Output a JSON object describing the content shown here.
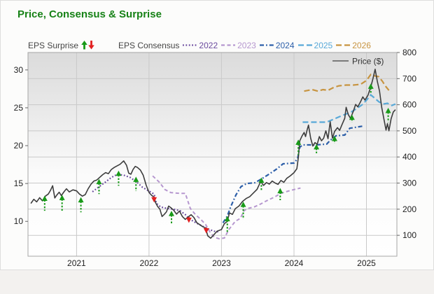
{
  "title": "Price, Consensus & Surprise",
  "title_color": "#178217",
  "legend": {
    "eps_surprise_label": "EPS Surprise",
    "eps_consensus_label": "EPS Consensus",
    "price_label": "Price ($)",
    "up_arrow_color": "#189a18",
    "down_arrow_color": "#e22020"
  },
  "axes": {
    "left_ticks": [
      30,
      25,
      20,
      15,
      10
    ],
    "right_ticks": [
      800,
      700,
      600,
      500,
      400,
      300,
      200,
      100
    ],
    "x_ticks": [
      2021,
      2022,
      2023,
      2024,
      2025
    ]
  },
  "chart_data": {
    "type": "line",
    "title": "Price, Consensus & Surprise",
    "x_range": [
      2020.33,
      2025.42
    ],
    "left_axis": {
      "label": "EPS",
      "range": [
        5.4,
        32.3
      ]
    },
    "right_axis": {
      "label": "Price ($)",
      "range": [
        20,
        800
      ]
    },
    "grid": "on",
    "price_series": {
      "name": "Price ($)",
      "color": "#3d3d3d",
      "axis": "right",
      "points": [
        [
          2020.37,
          222
        ],
        [
          2020.41,
          238
        ],
        [
          2020.45,
          228
        ],
        [
          2020.49,
          244
        ],
        [
          2020.53,
          232
        ],
        [
          2020.57,
          250
        ],
        [
          2020.61,
          258
        ],
        [
          2020.64,
          272
        ],
        [
          2020.67,
          290
        ],
        [
          2020.7,
          243
        ],
        [
          2020.73,
          255
        ],
        [
          2020.76,
          265
        ],
        [
          2020.79,
          252
        ],
        [
          2020.83,
          268
        ],
        [
          2020.86,
          278
        ],
        [
          2020.9,
          266
        ],
        [
          2020.95,
          274
        ],
        [
          2021.0,
          270
        ],
        [
          2021.04,
          258
        ],
        [
          2021.08,
          250
        ],
        [
          2021.12,
          256
        ],
        [
          2021.16,
          278
        ],
        [
          2021.2,
          296
        ],
        [
          2021.24,
          308
        ],
        [
          2021.28,
          312
        ],
        [
          2021.32,
          322
        ],
        [
          2021.36,
          332
        ],
        [
          2021.4,
          340
        ],
        [
          2021.44,
          336
        ],
        [
          2021.48,
          352
        ],
        [
          2021.52,
          360
        ],
        [
          2021.56,
          366
        ],
        [
          2021.6,
          372
        ],
        [
          2021.65,
          385
        ],
        [
          2021.69,
          368
        ],
        [
          2021.72,
          338
        ],
        [
          2021.75,
          334
        ],
        [
          2021.78,
          352
        ],
        [
          2021.81,
          364
        ],
        [
          2021.84,
          360
        ],
        [
          2021.88,
          350
        ],
        [
          2021.92,
          330
        ],
        [
          2021.96,
          292
        ],
        [
          2022.0,
          264
        ],
        [
          2022.04,
          252
        ],
        [
          2022.07,
          246
        ],
        [
          2022.09,
          225
        ],
        [
          2022.12,
          210
        ],
        [
          2022.15,
          200
        ],
        [
          2022.18,
          172
        ],
        [
          2022.21,
          180
        ],
        [
          2022.24,
          190
        ],
        [
          2022.27,
          212
        ],
        [
          2022.3,
          206
        ],
        [
          2022.34,
          196
        ],
        [
          2022.38,
          181
        ],
        [
          2022.42,
          193
        ],
        [
          2022.46,
          172
        ],
        [
          2022.5,
          161
        ],
        [
          2022.54,
          170
        ],
        [
          2022.58,
          179
        ],
        [
          2022.62,
          168
        ],
        [
          2022.66,
          148
        ],
        [
          2022.7,
          141
        ],
        [
          2022.74,
          133
        ],
        [
          2022.78,
          128
        ],
        [
          2022.81,
          98
        ],
        [
          2022.85,
          89
        ],
        [
          2022.89,
          101
        ],
        [
          2022.94,
          116
        ],
        [
          2023.0,
          122
        ],
        [
          2023.04,
          145
        ],
        [
          2023.08,
          153
        ],
        [
          2023.11,
          186
        ],
        [
          2023.15,
          180
        ],
        [
          2023.19,
          202
        ],
        [
          2023.24,
          212
        ],
        [
          2023.29,
          230
        ],
        [
          2023.34,
          241
        ],
        [
          2023.39,
          248
        ],
        [
          2023.44,
          262
        ],
        [
          2023.49,
          276
        ],
        [
          2023.54,
          306
        ],
        [
          2023.58,
          291
        ],
        [
          2023.62,
          302
        ],
        [
          2023.66,
          296
        ],
        [
          2023.7,
          308
        ],
        [
          2023.74,
          300
        ],
        [
          2023.78,
          295
        ],
        [
          2023.82,
          310
        ],
        [
          2023.86,
          303
        ],
        [
          2023.9,
          318
        ],
        [
          2023.95,
          328
        ],
        [
          2024.0,
          340
        ],
        [
          2024.04,
          355
        ],
        [
          2024.06,
          398
        ],
        [
          2024.08,
          462
        ],
        [
          2024.11,
          480
        ],
        [
          2024.14,
          494
        ],
        [
          2024.16,
          478
        ],
        [
          2024.18,
          502
        ],
        [
          2024.2,
          522
        ],
        [
          2024.23,
          472
        ],
        [
          2024.26,
          442
        ],
        [
          2024.29,
          455
        ],
        [
          2024.32,
          448
        ],
        [
          2024.35,
          478
        ],
        [
          2024.38,
          462
        ],
        [
          2024.41,
          472
        ],
        [
          2024.44,
          500
        ],
        [
          2024.47,
          470
        ],
        [
          2024.5,
          535
        ],
        [
          2024.53,
          472
        ],
        [
          2024.56,
          498
        ],
        [
          2024.6,
          512
        ],
        [
          2024.63,
          502
        ],
        [
          2024.66,
          522
        ],
        [
          2024.7,
          548
        ],
        [
          2024.72,
          590
        ],
        [
          2024.75,
          562
        ],
        [
          2024.78,
          548
        ],
        [
          2024.82,
          576
        ],
        [
          2024.85,
          601
        ],
        [
          2024.88,
          592
        ],
        [
          2024.92,
          612
        ],
        [
          2024.95,
          630
        ],
        [
          2024.98,
          618
        ],
        [
          2025.02,
          636
        ],
        [
          2025.06,
          668
        ],
        [
          2025.09,
          700
        ],
        [
          2025.12,
          736
        ],
        [
          2025.15,
          690
        ],
        [
          2025.18,
          652
        ],
        [
          2025.21,
          590
        ],
        [
          2025.24,
          546
        ],
        [
          2025.27,
          503
        ],
        [
          2025.29,
          528
        ],
        [
          2025.31,
          500
        ],
        [
          2025.34,
          546
        ],
        [
          2025.37,
          572
        ],
        [
          2025.4,
          581
        ]
      ]
    },
    "consensus_series": [
      {
        "name": "2022",
        "color": "#6a4a9e",
        "dash": "1.8,2.6",
        "width": 2.2,
        "axis": "left",
        "points": [
          [
            2021.22,
            13.9
          ],
          [
            2021.3,
            14.5
          ],
          [
            2021.4,
            15.2
          ],
          [
            2021.48,
            15.8
          ],
          [
            2021.56,
            16.2
          ],
          [
            2021.65,
            16.1
          ],
          [
            2021.74,
            15.8
          ],
          [
            2021.83,
            15.2
          ],
          [
            2021.91,
            14.5
          ],
          [
            2022.0,
            14.0
          ],
          [
            2022.07,
            13.6
          ],
          [
            2022.1,
            12.4
          ],
          [
            2022.16,
            11.9
          ],
          [
            2022.25,
            11.7
          ],
          [
            2022.34,
            11.6
          ],
          [
            2022.43,
            11.4
          ],
          [
            2022.5,
            10.9
          ],
          [
            2022.56,
            10.3
          ],
          [
            2022.65,
            9.8
          ],
          [
            2022.73,
            9.4
          ],
          [
            2022.81,
            9.0
          ],
          [
            2022.9,
            8.7
          ],
          [
            2022.97,
            8.6
          ]
        ]
      },
      {
        "name": "2023",
        "color": "#b697cf",
        "dash": "5,3.5",
        "width": 2,
        "axis": "left",
        "points": [
          [
            2022.05,
            16.0
          ],
          [
            2022.14,
            15.2
          ],
          [
            2022.22,
            14.2
          ],
          [
            2022.3,
            13.8
          ],
          [
            2022.42,
            13.7
          ],
          [
            2022.5,
            13.7
          ],
          [
            2022.57,
            11.7
          ],
          [
            2022.64,
            10.9
          ],
          [
            2022.71,
            10.3
          ],
          [
            2022.78,
            9.6
          ],
          [
            2022.84,
            8.6
          ],
          [
            2022.9,
            7.9
          ],
          [
            2022.97,
            7.7
          ],
          [
            2023.04,
            7.8
          ],
          [
            2023.1,
            8.9
          ],
          [
            2023.19,
            10.0
          ],
          [
            2023.26,
            10.4
          ],
          [
            2023.31,
            11.4
          ],
          [
            2023.36,
            11.7
          ],
          [
            2023.45,
            11.9
          ],
          [
            2023.54,
            12.3
          ],
          [
            2023.64,
            12.8
          ],
          [
            2023.73,
            13.2
          ],
          [
            2023.82,
            13.7
          ],
          [
            2023.92,
            14.0
          ],
          [
            2024.0,
            14.2
          ],
          [
            2024.09,
            14.4
          ]
        ]
      },
      {
        "name": "2024",
        "color": "#2d5fa9",
        "dash": "6,3,1.8,3",
        "width": 2.2,
        "axis": "left",
        "points": [
          [
            2023.02,
            9.8
          ],
          [
            2023.08,
            10.7
          ],
          [
            2023.13,
            12.0
          ],
          [
            2023.2,
            13.5
          ],
          [
            2023.27,
            14.6
          ],
          [
            2023.35,
            15.0
          ],
          [
            2023.46,
            15.1
          ],
          [
            2023.55,
            15.6
          ],
          [
            2023.65,
            16.2
          ],
          [
            2023.76,
            16.9
          ],
          [
            2023.85,
            17.6
          ],
          [
            2024.0,
            17.7
          ],
          [
            2024.05,
            18.3
          ],
          [
            2024.08,
            19.8
          ],
          [
            2024.12,
            20.1
          ],
          [
            2024.3,
            20.1
          ],
          [
            2024.45,
            20.2
          ],
          [
            2024.5,
            20.7
          ],
          [
            2024.58,
            21.3
          ],
          [
            2024.7,
            21.4
          ],
          [
            2024.77,
            22.3
          ],
          [
            2024.9,
            22.5
          ],
          [
            2024.97,
            22.6
          ]
        ]
      },
      {
        "name": "2025",
        "color": "#59a9d8",
        "dash": "8,4",
        "width": 2.2,
        "axis": "left",
        "points": [
          [
            2024.12,
            23.1
          ],
          [
            2024.3,
            23.1
          ],
          [
            2024.45,
            23.1
          ],
          [
            2024.55,
            23.5
          ],
          [
            2024.62,
            23.8
          ],
          [
            2024.7,
            24.1
          ],
          [
            2024.8,
            24.5
          ],
          [
            2024.88,
            25.0
          ],
          [
            2024.94,
            25.4
          ],
          [
            2025.0,
            26.0
          ],
          [
            2025.06,
            26.7
          ],
          [
            2025.11,
            26.3
          ],
          [
            2025.17,
            25.8
          ],
          [
            2025.23,
            25.5
          ],
          [
            2025.29,
            25.6
          ],
          [
            2025.35,
            25.3
          ],
          [
            2025.4,
            25.5
          ]
        ]
      },
      {
        "name": "2026",
        "color": "#c79440",
        "dash": "8,4",
        "width": 2.2,
        "axis": "left",
        "points": [
          [
            2024.14,
            27.2
          ],
          [
            2024.25,
            27.4
          ],
          [
            2024.33,
            27.2
          ],
          [
            2024.4,
            27.4
          ],
          [
            2024.47,
            27.3
          ],
          [
            2024.55,
            27.7
          ],
          [
            2024.62,
            27.9
          ],
          [
            2024.72,
            28.0
          ],
          [
            2024.82,
            28.0
          ],
          [
            2024.92,
            28.1
          ],
          [
            2025.0,
            28.6
          ],
          [
            2025.06,
            29.4
          ],
          [
            2025.12,
            29.2
          ],
          [
            2025.17,
            29.1
          ],
          [
            2025.22,
            28.5
          ],
          [
            2025.26,
            27.9
          ],
          [
            2025.31,
            27.3
          ]
        ]
      }
    ],
    "surprises": {
      "up_color": "#189a18",
      "down_color": "#e22020",
      "up": [
        {
          "x": 2020.56,
          "tip": 13.4,
          "tail": 11.4
        },
        {
          "x": 2020.8,
          "tip": 13.5,
          "tail": 11.3
        },
        {
          "x": 2021.06,
          "tip": 13.2,
          "tail": 11.2
        },
        {
          "x": 2021.31,
          "tip": 15.6,
          "tail": 13.6
        },
        {
          "x": 2021.58,
          "tip": 16.7,
          "tail": 14.7
        },
        {
          "x": 2021.82,
          "tip": 15.9,
          "tail": 14.0
        },
        {
          "x": 2022.31,
          "tip": 11.4,
          "tail": 9.6
        },
        {
          "x": 2023.08,
          "tip": 10.7,
          "tail": 8.4
        },
        {
          "x": 2023.3,
          "tip": 12.6,
          "tail": 10.3
        },
        {
          "x": 2023.55,
          "tip": 15.8,
          "tail": 14.1
        },
        {
          "x": 2023.81,
          "tip": 14.4,
          "tail": 12.8
        },
        {
          "x": 2024.06,
          "tip": 20.8,
          "tail": 18.8
        },
        {
          "x": 2024.31,
          "tip": 20.2,
          "tail": 19.0
        },
        {
          "x": 2024.56,
          "tip": 21.3,
          "tail": 20.3
        },
        {
          "x": 2024.8,
          "tip": 24.1,
          "tail": 23.1
        },
        {
          "x": 2025.06,
          "tip": 28.2,
          "tail": 26.8
        },
        {
          "x": 2025.3,
          "tip": 25.0,
          "tail": 23.1
        }
      ],
      "down": [
        {
          "x": 2022.07,
          "tip": 12.5,
          "tail": 13.4
        },
        {
          "x": 2022.55,
          "tip": 9.8,
          "tail": 10.6
        },
        {
          "x": 2022.79,
          "tip": 8.4,
          "tail": 9.2
        }
      ]
    }
  }
}
